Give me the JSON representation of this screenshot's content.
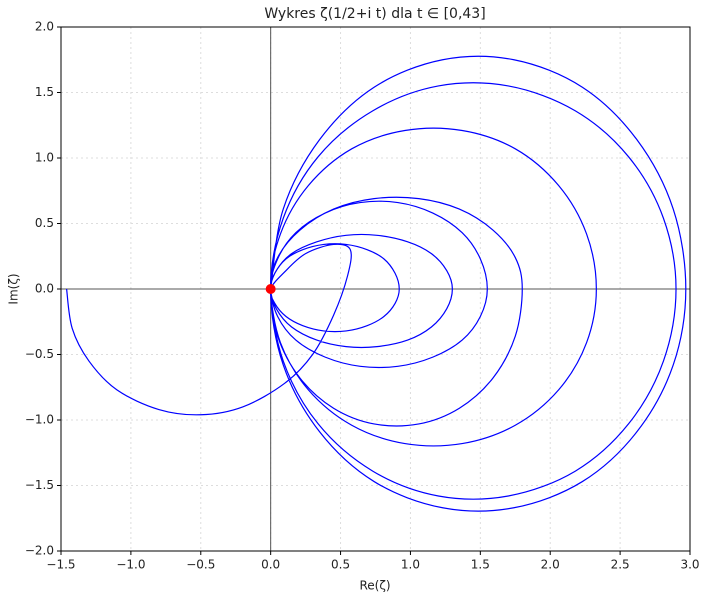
{
  "chart_data": {
    "type": "line",
    "title": "Wykres ζ(1/2+i t) dla t ∈ [0,43]",
    "xlabel": "Re(ζ)",
    "ylabel": "Im(ζ)",
    "xlim": [
      -1.5,
      3.0
    ],
    "ylim": [
      -2.0,
      2.0
    ],
    "xticks": [
      {
        "value": -1.5,
        "label": "−1.5"
      },
      {
        "value": -1.0,
        "label": "−1.0"
      },
      {
        "value": -0.5,
        "label": "−0.5"
      },
      {
        "value": 0,
        "label": "0.0"
      },
      {
        "value": 0.5,
        "label": "0.5"
      },
      {
        "value": 1.0,
        "label": "1.0"
      },
      {
        "value": 1.5,
        "label": "1.5"
      },
      {
        "value": 2.0,
        "label": "2.0"
      },
      {
        "value": 2.5,
        "label": "2.5"
      },
      {
        "value": 3.0,
        "label": "3.0"
      }
    ],
    "yticks": [
      {
        "value": -2.0,
        "label": "−2.0"
      },
      {
        "value": -1.5,
        "label": "−1.5"
      },
      {
        "value": -1.0,
        "label": "−1.0"
      },
      {
        "value": -0.5,
        "label": "−0.5"
      },
      {
        "value": 0,
        "label": "0.0"
      },
      {
        "value": 0.5,
        "label": "0.5"
      },
      {
        "value": 1.0,
        "label": "1.0"
      },
      {
        "value": 1.5,
        "label": "1.5"
      },
      {
        "value": 2.0,
        "label": "2.0"
      }
    ],
    "grid": true,
    "series": [
      {
        "color": "#0000ff",
        "x": [
          -1.46,
          -1.42,
          -1.3,
          -1.1,
          -0.8,
          -0.5,
          -0.2,
          0.1,
          0.3,
          0.45,
          0.55,
          0.57,
          0.45,
          0.25,
          0.1,
          0,
          0.03,
          0.11,
          0.23,
          0.38,
          0.54,
          0.69,
          0.81,
          0.89,
          0.92,
          0.89,
          0.81,
          0.69,
          0.54,
          0.38,
          0.23,
          0.11,
          0.03,
          0,
          0.04,
          0.15,
          0.33,
          0.54,
          0.76,
          0.98,
          1.15,
          1.26,
          1.3,
          1.26,
          1.15,
          0.98,
          0.76,
          0.54,
          0.33,
          0.15,
          0.04,
          0,
          0.05,
          0.18,
          0.39,
          0.64,
          0.91,
          1.16,
          1.37,
          1.5,
          1.55,
          1.5,
          1.37,
          1.16,
          0.91,
          0.64,
          0.39,
          0.18,
          0.05,
          0,
          0.05,
          0.21,
          0.45,
          0.74,
          1.06,
          1.35,
          1.59,
          1.75,
          1.8,
          1.75,
          1.59,
          1.35,
          1.06,
          0.74,
          0.45,
          0.21,
          0.05,
          0,
          0.07,
          0.27,
          0.58,
          0.96,
          1.37,
          1.75,
          2.06,
          2.26,
          2.33,
          2.26,
          2.06,
          1.75,
          1.37,
          0.96,
          0.58,
          0.27,
          0.07,
          0,
          0.09,
          0.34,
          0.73,
          1.2,
          1.7,
          2.18,
          2.56,
          2.81,
          2.9,
          2.81,
          2.56,
          2.18,
          1.7,
          1.2,
          0.73,
          0.34,
          0.09,
          0,
          0.09,
          0.35,
          0.74,
          1.23,
          1.74,
          2.23,
          2.62,
          2.88,
          2.97,
          2.88,
          2.62,
          2.23,
          1.74,
          1.23,
          0.74,
          0.35,
          0.09,
          0
        ],
        "y": [
          0,
          -0.3,
          -0.55,
          -0.77,
          -0.92,
          -0.96,
          -0.9,
          -0.72,
          -0.5,
          -0.2,
          0.1,
          0.3,
          0.34,
          0.27,
          0.13,
          0,
          -0.11,
          -0.21,
          -0.28,
          -0.32,
          -0.32,
          -0.28,
          -0.21,
          -0.11,
          0,
          0.12,
          0.23,
          0.3,
          0.34,
          0.34,
          0.3,
          0.23,
          0.12,
          0,
          -0.15,
          -0.29,
          -0.39,
          -0.44,
          -0.44,
          -0.39,
          -0.29,
          -0.15,
          0,
          0.14,
          0.27,
          0.36,
          0.41,
          0.41,
          0.36,
          0.27,
          0.14,
          0,
          -0.21,
          -0.39,
          -0.52,
          -0.59,
          -0.59,
          -0.52,
          -0.39,
          -0.21,
          0,
          0.23,
          0.43,
          0.58,
          0.66,
          0.66,
          0.58,
          0.43,
          0.23,
          0,
          -0.36,
          -0.68,
          -0.91,
          -1.03,
          -1.03,
          -0.91,
          -0.68,
          -0.36,
          0,
          0.24,
          0.45,
          0.61,
          0.69,
          0.69,
          0.61,
          0.45,
          0.24,
          0,
          -0.41,
          -0.77,
          -1.04,
          -1.18,
          -1.18,
          -1.04,
          -0.77,
          -0.41,
          0,
          0.42,
          0.79,
          1.07,
          1.21,
          1.21,
          1.07,
          0.79,
          0.42,
          0,
          -0.55,
          -1.03,
          -1.39,
          -1.58,
          -1.58,
          -1.39,
          -1.03,
          -0.55,
          0,
          0.54,
          1.01,
          1.36,
          1.55,
          1.55,
          1.36,
          1.01,
          0.54,
          0,
          -0.58,
          -1.09,
          -1.47,
          -1.67,
          -1.67,
          -1.47,
          -1.09,
          -0.58,
          0,
          0.61,
          1.14,
          1.54,
          1.75,
          1.75,
          1.54,
          1.14,
          0.61,
          0
        ]
      }
    ],
    "points": [
      {
        "x": 0,
        "y": 0,
        "color": "#ff0000"
      }
    ]
  }
}
